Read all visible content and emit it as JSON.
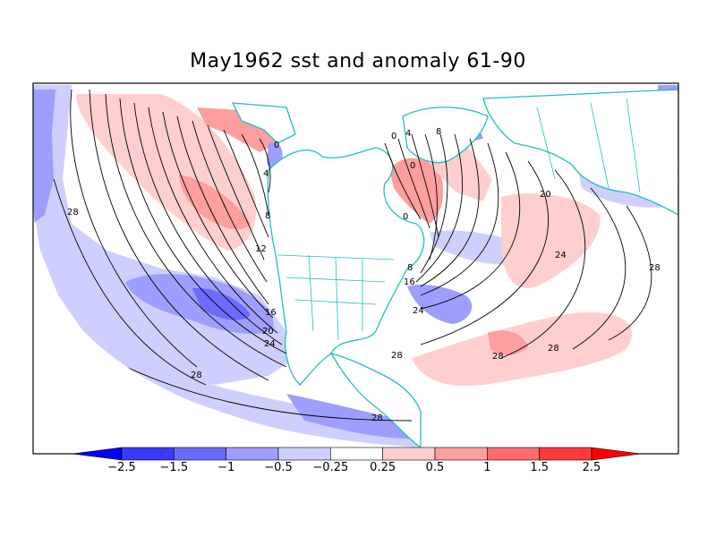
{
  "title": "May1962 sst and anomaly 61-90",
  "colorbar": {
    "labels": [
      "-2.5",
      "-1.5",
      "-1",
      "-0.5",
      "-0.25",
      "0.25",
      "0.5",
      "1",
      "1.5",
      "2.5"
    ],
    "colors": [
      "#0000ff",
      "#3a3aff",
      "#6b6bff",
      "#9e9eff",
      "#cfcfff",
      "#ffffff",
      "#ffcfcf",
      "#ff9e9e",
      "#ff6b6b",
      "#ff3a3a",
      "#ff0000"
    ]
  },
  "contour_labels": {
    "sst_0_a": "0",
    "sst_4_a": "4",
    "sst_8_a": "8",
    "sst_12_a": "12",
    "sst_16_a": "16",
    "sst_20_a": "20",
    "sst_24_a": "24",
    "sst_28_w": "28",
    "sst_28_sw": "28",
    "sst_28_s": "28",
    "sst_0_n": "0",
    "sst_4_n": "4",
    "sst_8_n": "8",
    "sst_0_ne": "0",
    "sst_0_lab": "0",
    "sst_8_e": "8",
    "sst_16_e": "16",
    "sst_24_e": "24",
    "sst_20_atl": "20",
    "sst_24_atl": "24",
    "sst_28_atl": "28",
    "sst_28_gulf": "28",
    "sst_28_car": "28",
    "sst_28_far": "28"
  },
  "colors": {
    "coast": "#1fbfbf",
    "contour": "#000000",
    "frame": "#000000"
  }
}
